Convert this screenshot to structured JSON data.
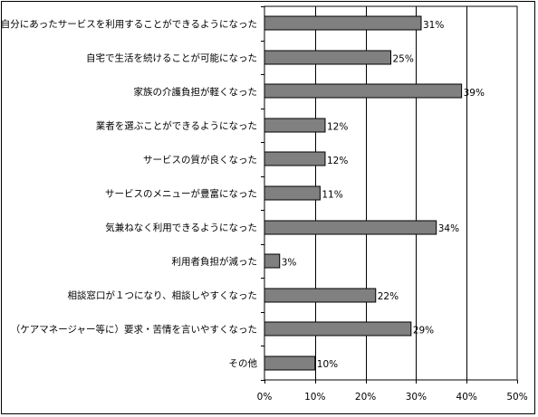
{
  "chart_data": {
    "type": "bar",
    "orientation": "horizontal",
    "categories": [
      "自分にあったサービスを利用することができるようになった",
      "自宅で生活を続けることが可能になった",
      "家族の介護負担が軽くなった",
      "業者を選ぶことができるようになった",
      "サービスの質が良くなった",
      "サービスのメニューが豊富になった",
      "気兼ねなく利用できるようになった",
      "利用者負担が減った",
      "相談窓口が１つになり、相談しやすくなった",
      "（ケアマネージャー等に）要求・苦情を言いやすくなった",
      "その他"
    ],
    "values": [
      31,
      25,
      39,
      12,
      12,
      11,
      34,
      3,
      22,
      29,
      10
    ],
    "value_labels": [
      "31%",
      "25%",
      "39%",
      "12%",
      "12%",
      "11%",
      "34%",
      "3%",
      "22%",
      "29%",
      "10%"
    ],
    "xlim": [
      0,
      50
    ],
    "xticks": [
      0,
      10,
      20,
      30,
      40,
      50
    ],
    "xtick_labels": [
      "0%",
      "10%",
      "20%",
      "30%",
      "40%",
      "50%"
    ],
    "grid": true,
    "bar_color": "#808080",
    "bar_edge_color": "#000000",
    "title": "",
    "xlabel": "",
    "ylabel": ""
  }
}
